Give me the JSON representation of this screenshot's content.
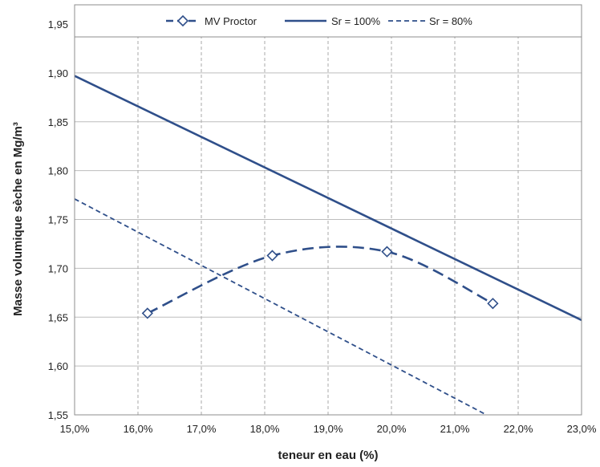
{
  "chart_data": {
    "type": "line",
    "xlabel": "teneur en eau (%)",
    "ylabel": "Masse volumique sèche en Mg/m³",
    "xlim": [
      15.0,
      23.0
    ],
    "ylim": [
      1.55,
      1.95
    ],
    "x_ticks": [
      15,
      16,
      17,
      18,
      19,
      20,
      21,
      22,
      23
    ],
    "x_tick_labels": [
      "15,0%",
      "16,0%",
      "17,0%",
      "18,0%",
      "19,0%",
      "20,0%",
      "21,0%",
      "22,0%",
      "23,0%"
    ],
    "y_ticks": [
      1.55,
      1.6,
      1.65,
      1.7,
      1.75,
      1.8,
      1.85,
      1.9,
      1.95
    ],
    "y_tick_labels": [
      "1,55",
      "1,60",
      "1,65",
      "1,70",
      "1,75",
      "1,80",
      "1,85",
      "1,90",
      "1,95"
    ],
    "grid": {
      "vertical": "dashed",
      "horizontal": "solid"
    },
    "legend_position": "top",
    "series": [
      {
        "name": "MV Proctor",
        "style": "long-dash with diamond markers",
        "color": "#2f4f8a",
        "x": [
          16.15,
          18.12,
          19.93,
          21.6
        ],
        "y": [
          1.654,
          1.713,
          1.717,
          1.664
        ]
      },
      {
        "name": "Sr = 100%",
        "style": "solid",
        "color": "#2f4f8a",
        "x": [
          15.0,
          23.0
        ],
        "y": [
          1.897,
          1.647
        ]
      },
      {
        "name": "Sr = 80%",
        "style": "short-dash",
        "color": "#2f4f8a",
        "x": [
          15.0,
          21.5
        ],
        "y": [
          1.771,
          1.55
        ]
      }
    ]
  }
}
